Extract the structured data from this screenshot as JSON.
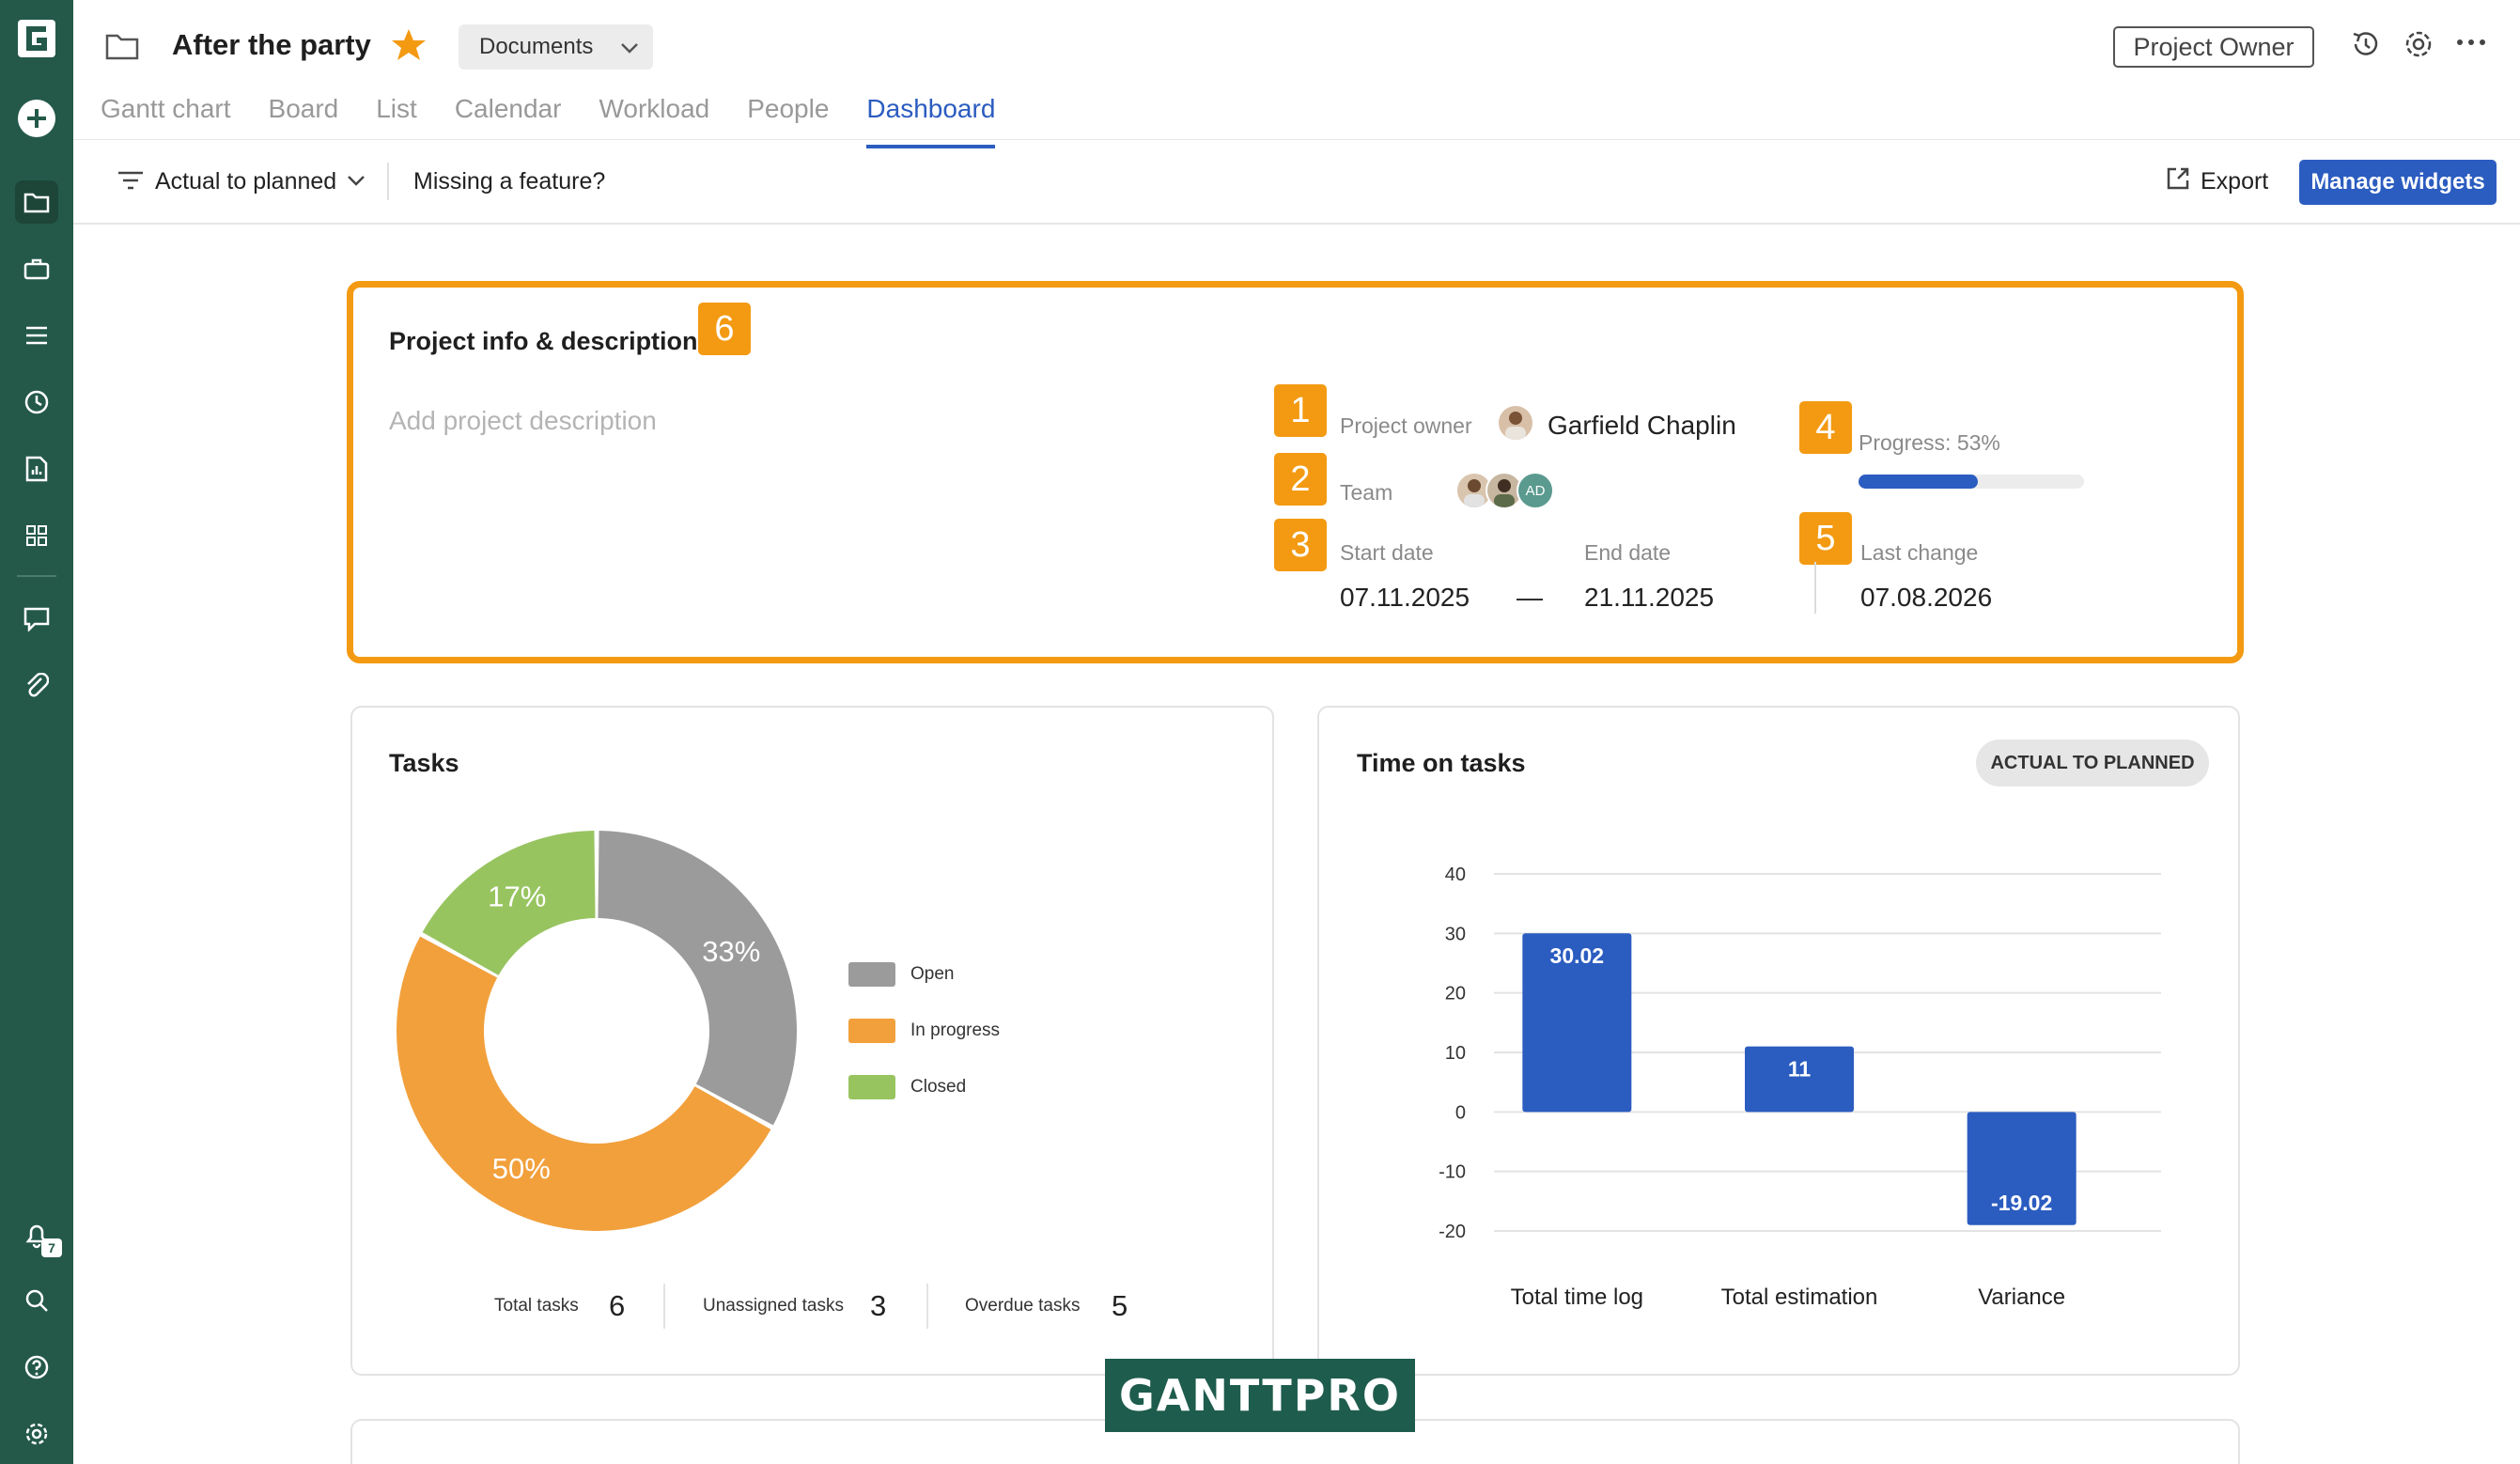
{
  "header": {
    "project_title": "After the party",
    "docs_label": "Documents",
    "owner_button": "Project Owner"
  },
  "tabs": [
    {
      "label": "Gantt chart"
    },
    {
      "label": "Board"
    },
    {
      "label": "List"
    },
    {
      "label": "Calendar"
    },
    {
      "label": "Workload"
    },
    {
      "label": "People"
    },
    {
      "label": "Dashboard",
      "active": true
    }
  ],
  "toolbar": {
    "filter_label": "Actual to planned",
    "missing_label": "Missing a feature?",
    "export_label": "Export",
    "manage_label": "Manage widgets"
  },
  "rail": {
    "notifications_count": "7"
  },
  "project_info": {
    "title": "Project info & description",
    "description_placeholder": "Add project description",
    "owner_label": "Project owner",
    "owner_name": "Garfield Chaplin",
    "team_label": "Team",
    "team_initials": "AD",
    "start_label": "Start date",
    "start_value": "07.11.2025",
    "dash": "—",
    "end_label": "End date",
    "end_value": "21.11.2025",
    "progress_label": "Progress: 53%",
    "progress_value": 0.53,
    "last_change_label": "Last change",
    "last_change_value": "07.08.2026",
    "badges": [
      "1",
      "2",
      "3",
      "4",
      "5",
      "6"
    ],
    "accent_color": "#f39a12"
  },
  "tasks_widget": {
    "title": "Tasks",
    "stats": [
      {
        "label": "Total tasks",
        "value": "6"
      },
      {
        "label": "Unassigned tasks",
        "value": "3"
      },
      {
        "label": "Overdue tasks",
        "value": "5"
      }
    ]
  },
  "time_widget": {
    "title": "Time on tasks",
    "pill": "ACTUAL TO PLANNED"
  },
  "brand": {
    "logo_text": "GANTTPRO",
    "primary_color": "#2b5cc0",
    "rail_color": "#24594a"
  },
  "chart_data": [
    {
      "type": "pie",
      "title": "Tasks",
      "categories": [
        "Open",
        "In progress",
        "Closed"
      ],
      "values": [
        33,
        50,
        17
      ],
      "labels": [
        "33%",
        "50%",
        "17%"
      ],
      "colors": [
        "#9b9b9b",
        "#f2a03c",
        "#98c460"
      ],
      "legend": "right"
    },
    {
      "type": "bar",
      "title": "Time on tasks",
      "categories": [
        "Total time log",
        "Total estimation",
        "Variance"
      ],
      "values": [
        30.02,
        11,
        -19.02
      ],
      "labels": [
        "30.02",
        "11",
        "-19.02"
      ],
      "ylim": [
        -20,
        40
      ],
      "yticks": [
        "40",
        "30",
        "20",
        "10",
        "0",
        "-10",
        "-20"
      ],
      "grid": true,
      "color": "#2b5cc0"
    }
  ]
}
